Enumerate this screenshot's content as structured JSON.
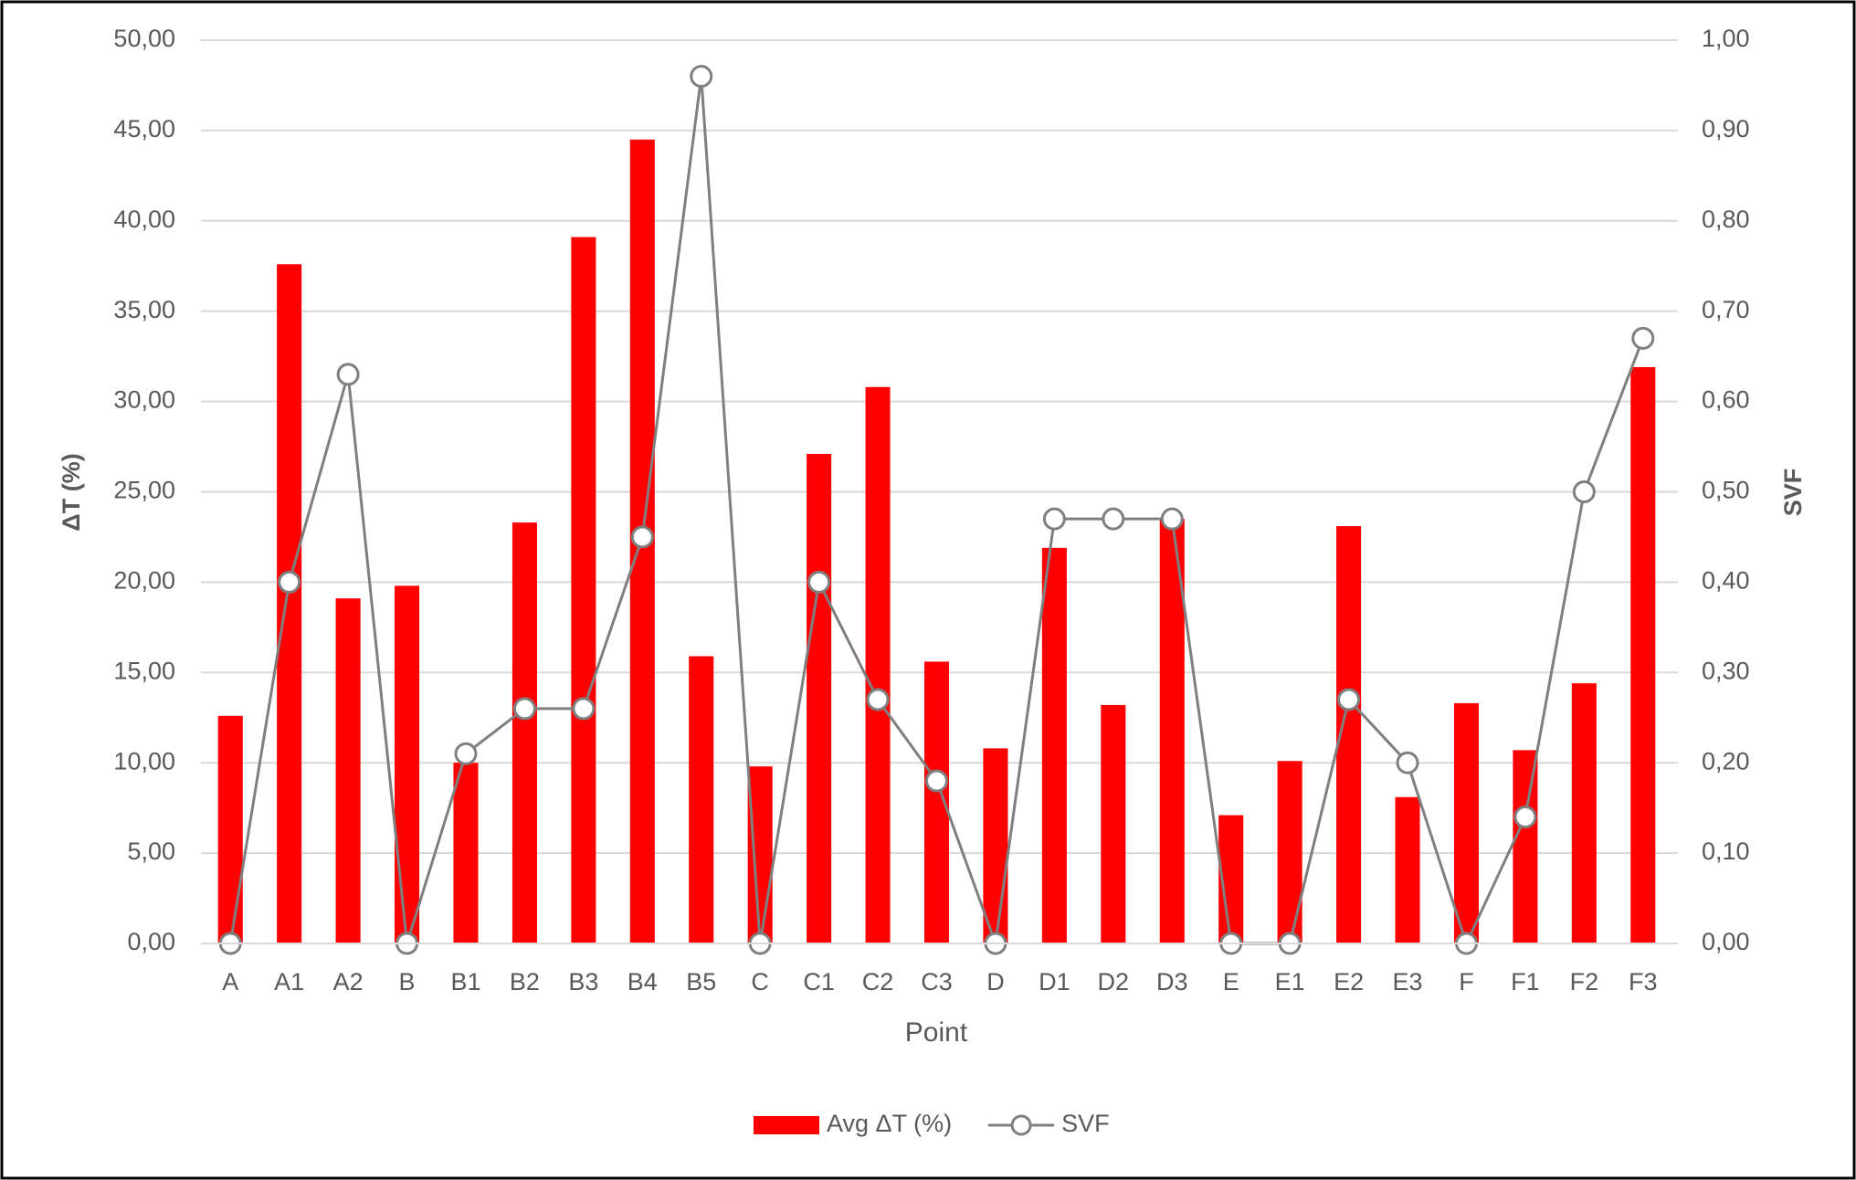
{
  "chart_data": {
    "type": "bar",
    "categories": [
      "A",
      "A1",
      "A2",
      "B",
      "B1",
      "B2",
      "B3",
      "B4",
      "B5",
      "C",
      "C1",
      "C2",
      "C3",
      "D",
      "D1",
      "D2",
      "D3",
      "E",
      "E1",
      "E2",
      "E3",
      "F",
      "F1",
      "F2",
      "F3"
    ],
    "series": [
      {
        "name": "Avg ΔT (%)",
        "type": "bar",
        "color": "#ff0000",
        "values": [
          12.6,
          37.6,
          19.1,
          19.8,
          10.0,
          23.3,
          39.1,
          44.5,
          15.9,
          9.8,
          27.1,
          30.8,
          15.6,
          10.8,
          21.9,
          13.2,
          23.5,
          7.1,
          10.1,
          23.1,
          8.1,
          13.3,
          10.7,
          14.4,
          31.9
        ]
      },
      {
        "name": "SVF",
        "type": "line",
        "axis": "y2",
        "color": "#7f7f7f",
        "values": [
          0,
          0.4,
          0.63,
          0,
          0.21,
          0.26,
          0.26,
          0.45,
          0.96,
          0,
          0.4,
          0.27,
          0.18,
          0,
          0.47,
          0.47,
          0.47,
          0,
          0,
          0.27,
          0.2,
          0,
          0.14,
          0.5,
          0.67
        ]
      }
    ],
    "x_label": "Point",
    "y_label": "ΔT (%)",
    "y2_label": "SVF",
    "ylim": [
      0,
      50
    ],
    "yticks": [
      {
        "value": 0,
        "label": "0,00"
      },
      {
        "value": 5,
        "label": "5,00"
      },
      {
        "value": 10,
        "label": "10,00"
      },
      {
        "value": 15,
        "label": "15,00"
      },
      {
        "value": 20,
        "label": "20,00"
      },
      {
        "value": 25,
        "label": "25,00"
      },
      {
        "value": 30,
        "label": "30,00"
      },
      {
        "value": 35,
        "label": "35,00"
      },
      {
        "value": 40,
        "label": "40,00"
      },
      {
        "value": 45,
        "label": "45,00"
      },
      {
        "value": 50,
        "label": "50,00"
      }
    ],
    "y2lim": [
      0,
      1
    ],
    "y2ticks": [
      {
        "value": 0,
        "label": "0,00"
      },
      {
        "value": 0.1,
        "label": "0,10"
      },
      {
        "value": 0.2,
        "label": "0,20"
      },
      {
        "value": 0.3,
        "label": "0,30"
      },
      {
        "value": 0.4,
        "label": "0,40"
      },
      {
        "value": 0.5,
        "label": "0,50"
      },
      {
        "value": 0.6,
        "label": "0,60"
      },
      {
        "value": 0.7,
        "label": "0,70"
      },
      {
        "value": 0.8,
        "label": "0,80"
      },
      {
        "value": 0.9,
        "label": "0,90"
      },
      {
        "value": 1,
        "label": "1,00"
      }
    ],
    "grid": true,
    "legend": "bottom"
  }
}
